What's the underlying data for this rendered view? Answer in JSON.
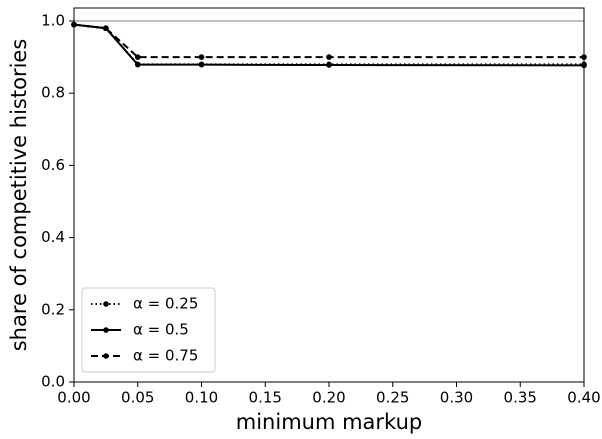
{
  "chart_data": {
    "type": "line",
    "xlabel": "minimum markup",
    "ylabel": "share of competitive histories",
    "x": [
      0,
      0.025,
      0.05,
      0.1,
      0.2,
      0.4
    ],
    "series": [
      {
        "name": "α = 0.25",
        "color": "#000000",
        "linestyle": "dotted",
        "values": [
          0.99,
          0.98,
          0.88,
          0.88,
          0.88,
          0.88
        ]
      },
      {
        "name": "α = 0.5",
        "color": "#000000",
        "linestyle": "solid",
        "values": [
          0.99,
          0.98,
          0.879,
          0.879,
          0.878,
          0.877
        ]
      },
      {
        "name": "α = 0.75",
        "color": "#000000",
        "linestyle": "dashed",
        "values": [
          0.99,
          0.98,
          0.9,
          0.9,
          0.9,
          0.9
        ]
      }
    ],
    "reference_line": 1.0,
    "reference_color": "#808080",
    "xlim": [
      0,
      0.4
    ],
    "ylim": [
      0,
      1.036
    ],
    "xticks": [
      {
        "value": 0,
        "label": "0.00"
      },
      {
        "value": 0.05,
        "label": "0.05"
      },
      {
        "value": 0.1,
        "label": "0.10"
      },
      {
        "value": 0.15,
        "label": "0.15"
      },
      {
        "value": 0.2,
        "label": "0.20"
      },
      {
        "value": 0.25,
        "label": "0.25"
      },
      {
        "value": 0.3,
        "label": "0.30"
      },
      {
        "value": 0.35,
        "label": "0.35"
      },
      {
        "value": 0.4,
        "label": "0.40"
      }
    ],
    "yticks": [
      {
        "value": 0,
        "label": "0.0"
      },
      {
        "value": 0.2,
        "label": "0.2"
      },
      {
        "value": 0.4,
        "label": "0.4"
      },
      {
        "value": 0.6,
        "label": "0.6"
      },
      {
        "value": 0.8,
        "label": "0.8"
      },
      {
        "value": 1,
        "label": "1.0"
      }
    ],
    "legend": "lower left"
  }
}
